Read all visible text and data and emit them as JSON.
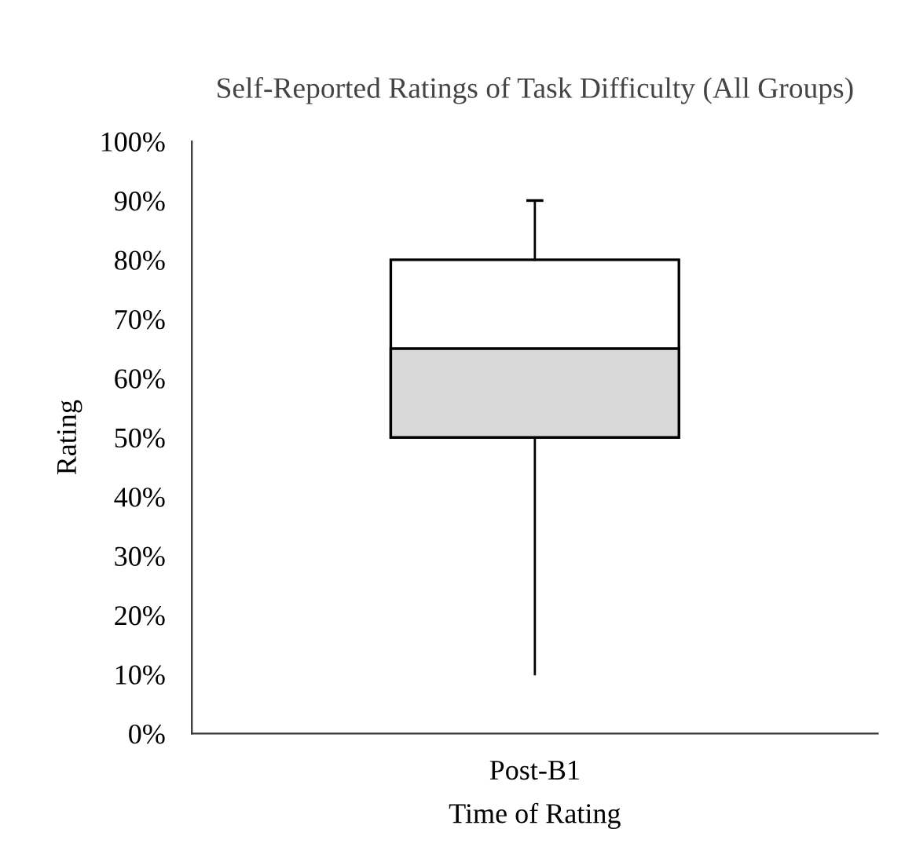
{
  "chart_data": {
    "type": "box",
    "title": "Self-Reported Ratings of Task Difficulty (All Groups)",
    "xlabel": "Time of Rating",
    "ylabel": "Rating",
    "categories": [
      "Post-B1"
    ],
    "series": [
      {
        "color": "#d9d9d9",
        "boxes": [
          {
            "low": 10,
            "q1": 50,
            "median": 65,
            "q3": 80,
            "high": 90
          }
        ]
      }
    ],
    "ylim": [
      0,
      100
    ],
    "yticks": [
      {
        "value": 0,
        "label": "0%"
      },
      {
        "value": 10,
        "label": "10%"
      },
      {
        "value": 20,
        "label": "20%"
      },
      {
        "value": 30,
        "label": "30%"
      },
      {
        "value": 40,
        "label": "40%"
      },
      {
        "value": 50,
        "label": "50%"
      },
      {
        "value": 60,
        "label": "60%"
      },
      {
        "value": 70,
        "label": "70%"
      },
      {
        "value": 80,
        "label": "80%"
      },
      {
        "value": 90,
        "label": "90%"
      },
      {
        "value": 100,
        "label": "100%"
      }
    ],
    "grid": false,
    "legend": false
  }
}
